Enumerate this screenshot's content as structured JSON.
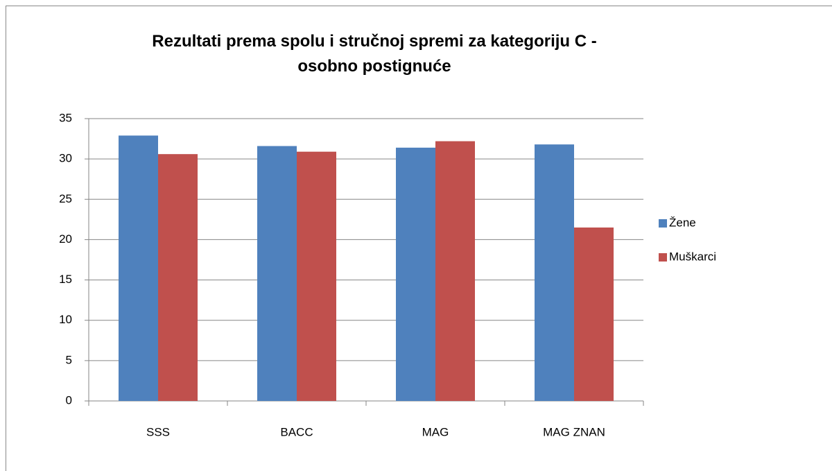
{
  "chart_data": {
    "type": "bar",
    "title": "Rezultati prema spolu i stručnoj spremi za kategoriju C - osobno postignuće",
    "categories": [
      "SSS",
      "BACC",
      "MAG",
      "MAG ZNAN"
    ],
    "series": [
      {
        "name": "Žene",
        "color": "#4f81bd",
        "values": [
          32.9,
          31.6,
          31.4,
          31.8
        ]
      },
      {
        "name": "Muškarci",
        "color": "#c0504d",
        "values": [
          30.6,
          30.9,
          32.2,
          21.5
        ]
      }
    ],
    "ylim": [
      0,
      35
    ],
    "yticks": [
      0,
      5,
      10,
      15,
      20,
      25,
      30,
      35
    ],
    "grid": true,
    "legend": "right"
  }
}
